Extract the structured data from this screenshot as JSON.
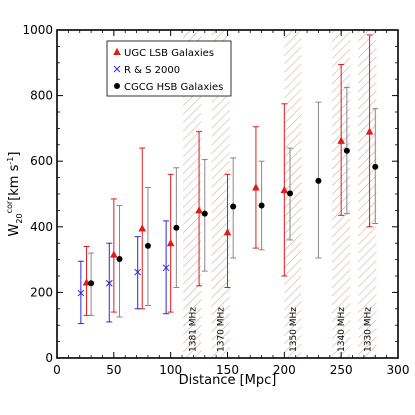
{
  "chart_data": {
    "type": "scatter",
    "xlabel": "Distance [Mpc]",
    "ylabel_main": "W",
    "ylabel_sub": "20",
    "ylabel_sup": "cor",
    "ylabel_unit": "[km s",
    "ylabel_unit_exp": "-1",
    "ylabel_unit_close": "]",
    "xlim": [
      0,
      300
    ],
    "ylim": [
      0,
      1000
    ],
    "xticks": [
      0,
      50,
      100,
      150,
      200,
      250,
      300
    ],
    "yticks": [
      0,
      200,
      400,
      600,
      800,
      1000
    ],
    "legend_position": "top-left",
    "colors": {
      "ugc": "#e31a1c",
      "rs": "#2a2ad8",
      "cgcg": "#000000",
      "hatch": "#c9a9a0",
      "cgcg_err": "#888888"
    },
    "bands": [
      {
        "x_start": 111,
        "x_end": 127,
        "label": "1381 MHz"
      },
      {
        "x_start": 136,
        "x_end": 152,
        "label": "1370 MHz"
      },
      {
        "x_start": 200,
        "x_end": 215,
        "label": "1350 MHz"
      },
      {
        "x_start": 242,
        "x_end": 258,
        "label": "1340 MHz"
      },
      {
        "x_start": 265,
        "x_end": 281,
        "label": "1330 MHz"
      }
    ],
    "series": [
      {
        "name": "UGC LSB Galaxies",
        "marker": "triangle",
        "points": [
          {
            "x": 26,
            "y": 230,
            "lo": 130,
            "hi": 340
          },
          {
            "x": 50,
            "y": 315,
            "lo": 140,
            "hi": 485
          },
          {
            "x": 75,
            "y": 395,
            "lo": 150,
            "hi": 640
          },
          {
            "x": 100,
            "y": 350,
            "lo": 140,
            "hi": 560
          },
          {
            "x": 125,
            "y": 450,
            "lo": 220,
            "hi": 690
          },
          {
            "x": 150,
            "y": 383,
            "lo": 215,
            "hi": 560
          },
          {
            "x": 175,
            "y": 520,
            "lo": 335,
            "hi": 705
          },
          {
            "x": 200,
            "y": 512,
            "lo": 250,
            "hi": 775
          },
          {
            "x": 250,
            "y": 662,
            "lo": 435,
            "hi": 895
          },
          {
            "x": 275,
            "y": 690,
            "lo": 400,
            "hi": 985
          }
        ]
      },
      {
        "name": "R & S 2000",
        "marker": "x",
        "points": [
          {
            "x": 21,
            "y": 198,
            "lo": 105,
            "hi": 295
          },
          {
            "x": 46,
            "y": 228,
            "lo": 110,
            "hi": 350
          },
          {
            "x": 71,
            "y": 262,
            "lo": 150,
            "hi": 370
          },
          {
            "x": 96,
            "y": 275,
            "lo": 135,
            "hi": 418
          }
        ]
      },
      {
        "name": "CGCG HSB Galaxies",
        "marker": "circle",
        "points": [
          {
            "x": 30,
            "y": 228,
            "lo": 130,
            "hi": 320
          },
          {
            "x": 55,
            "y": 302,
            "lo": 125,
            "hi": 465
          },
          {
            "x": 80,
            "y": 342,
            "lo": 160,
            "hi": 520
          },
          {
            "x": 105,
            "y": 397,
            "lo": 215,
            "hi": 580
          },
          {
            "x": 130,
            "y": 440,
            "lo": 265,
            "hi": 605
          },
          {
            "x": 155,
            "y": 462,
            "lo": 305,
            "hi": 610
          },
          {
            "x": 180,
            "y": 465,
            "lo": 330,
            "hi": 600
          },
          {
            "x": 205,
            "y": 502,
            "lo": 360,
            "hi": 640
          },
          {
            "x": 230,
            "y": 540,
            "lo": 305,
            "hi": 780
          },
          {
            "x": 255,
            "y": 632,
            "lo": 440,
            "hi": 825
          },
          {
            "x": 280,
            "y": 583,
            "lo": 410,
            "hi": 760
          }
        ]
      }
    ]
  }
}
